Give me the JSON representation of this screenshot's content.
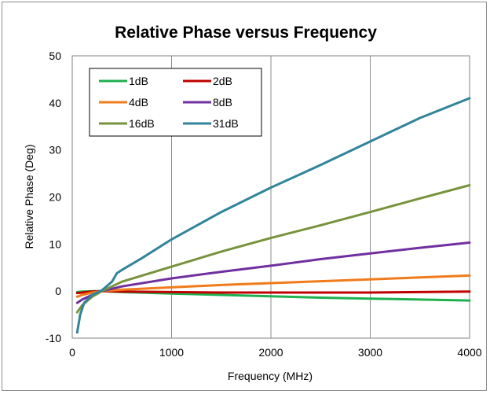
{
  "chart_data": {
    "type": "line",
    "title": "Relative Phase versus Frequency",
    "xlabel": "Frequency (MHz)",
    "ylabel": "Relative Phase (Deg)",
    "xlim": [
      0,
      4000
    ],
    "ylim": [
      -10,
      50
    ],
    "xticks": [
      0,
      1000,
      2000,
      3000,
      4000
    ],
    "yticks": [
      -10,
      0,
      10,
      20,
      30,
      40,
      50
    ],
    "grid": "vertical",
    "legend_position": "top-left",
    "series": [
      {
        "name": "1dB",
        "color": "#1fb050",
        "x": [
          50,
          100,
          200,
          300,
          500,
          1000,
          1500,
          2000,
          2500,
          3000,
          3500,
          4000
        ],
        "y": [
          -0.2,
          -0.1,
          0,
          0,
          -0.2,
          -0.5,
          -0.8,
          -1.1,
          -1.4,
          -1.6,
          -1.8,
          -2.0
        ]
      },
      {
        "name": "2dB",
        "color": "#c00000",
        "x": [
          50,
          100,
          200,
          300,
          500,
          1000,
          1500,
          2000,
          2500,
          3000,
          3500,
          4000
        ],
        "y": [
          -0.4,
          -0.3,
          -0.1,
          0,
          -0.1,
          -0.2,
          -0.3,
          -0.3,
          -0.3,
          -0.3,
          -0.2,
          -0.1
        ]
      },
      {
        "name": "4dB",
        "color": "#f07b1a",
        "x": [
          50,
          100,
          200,
          300,
          500,
          1000,
          1500,
          2000,
          2500,
          3000,
          3500,
          4000
        ],
        "y": [
          -1.2,
          -0.8,
          -0.3,
          0,
          0.3,
          0.8,
          1.3,
          1.7,
          2.1,
          2.5,
          2.9,
          3.3
        ]
      },
      {
        "name": "8dB",
        "color": "#7030a0",
        "x": [
          50,
          100,
          200,
          300,
          500,
          1000,
          1500,
          2000,
          2500,
          3000,
          3500,
          4000
        ],
        "y": [
          -2.5,
          -1.8,
          -0.8,
          0,
          1.0,
          2.7,
          4.1,
          5.4,
          6.8,
          8.0,
          9.2,
          10.3
        ]
      },
      {
        "name": "16dB",
        "color": "#77933c",
        "x": [
          50,
          100,
          200,
          300,
          400,
          500,
          1000,
          1500,
          2000,
          2500,
          3000,
          3500,
          4000
        ],
        "y": [
          -4.5,
          -3.0,
          -1.2,
          0,
          1.0,
          2.0,
          5.2,
          8.4,
          11.3,
          14.0,
          16.8,
          19.7,
          22.5
        ]
      },
      {
        "name": "31dB",
        "color": "#31849b",
        "x": [
          50,
          80,
          120,
          200,
          300,
          400,
          450,
          500,
          700,
          1000,
          1500,
          2000,
          2500,
          3000,
          3500,
          4000
        ],
        "y": [
          -8.8,
          -5.0,
          -2.5,
          -0.8,
          0.2,
          2.0,
          3.8,
          4.5,
          7.0,
          11.0,
          16.8,
          22.0,
          26.8,
          31.8,
          36.8,
          41.0
        ]
      }
    ]
  }
}
